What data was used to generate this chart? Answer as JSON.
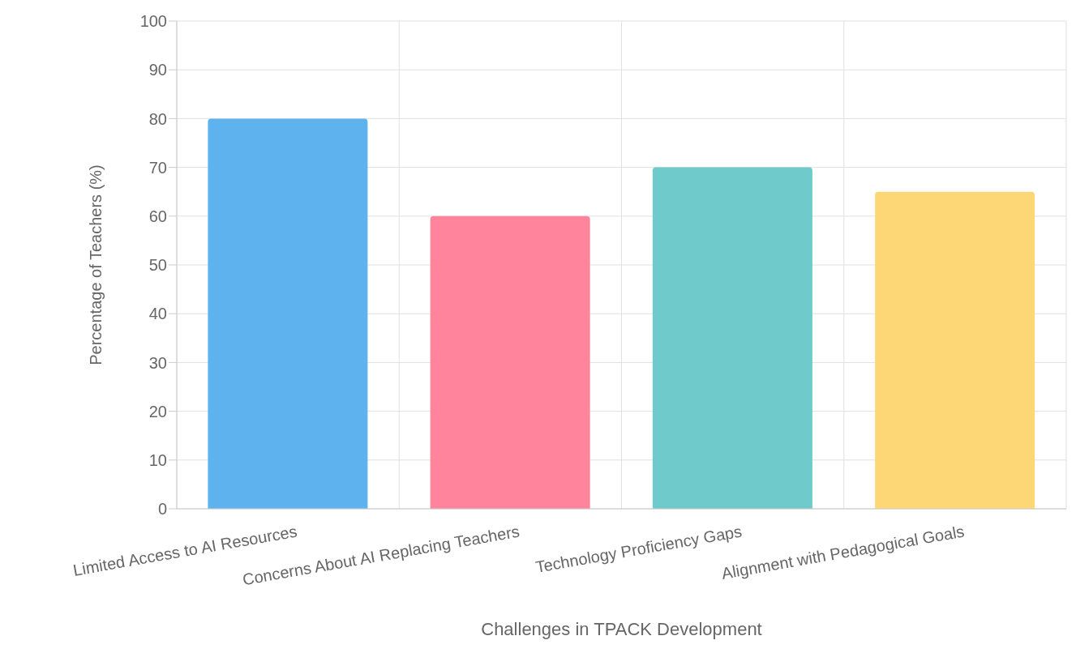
{
  "chart_data": {
    "type": "bar",
    "xlabel": "Challenges in TPACK Development",
    "ylabel": "Percentage of Teachers (%)",
    "categories": [
      "Limited Access to AI Resources",
      "Concerns About AI Replacing Teachers",
      "Technology Proficiency Gaps",
      "Alignment with Pedagogical Goals"
    ],
    "values": [
      80,
      60,
      70,
      65
    ],
    "colors": [
      "#5eb3ee",
      "#ff849c",
      "#6fcbcb",
      "#fdd675"
    ],
    "ylim": [
      0,
      100
    ],
    "yticks": [
      0,
      10,
      20,
      30,
      40,
      50,
      60,
      70,
      80,
      90,
      100
    ],
    "grid": true
  }
}
